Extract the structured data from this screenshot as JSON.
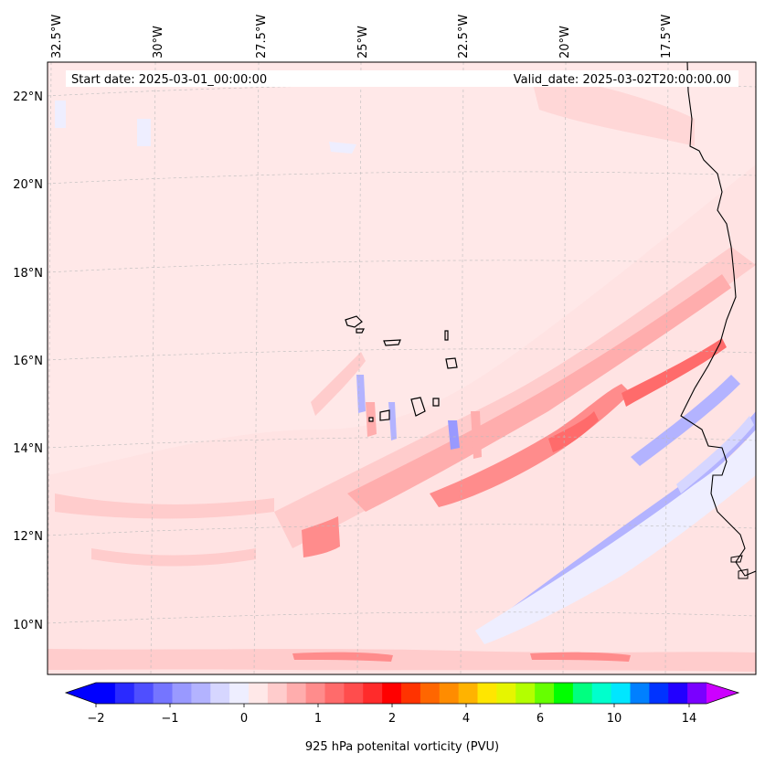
{
  "header": {
    "start_date": "Start date: 2025-03-01_00:00:00",
    "valid_date": "Valid_date: 2025-03-02T20:00:00.00"
  },
  "lon_labels": [
    "32.5°W",
    "30°W",
    "27.5°W",
    "25°W",
    "22.5°W",
    "20°W",
    "17.5°W"
  ],
  "lat_labels": [
    "22°N",
    "20°N",
    "18°N",
    "16°N",
    "14°N",
    "12°N",
    "10°N"
  ],
  "colorbar": {
    "title": "925 hPa potenital vorticity (PVU)",
    "tick_labels": [
      "−2",
      "−1",
      "0",
      "1",
      "2",
      "4",
      "6",
      "10",
      "14"
    ],
    "colors": [
      "#0000ff",
      "#2a2aff",
      "#4f4fff",
      "#7575ff",
      "#9999ff",
      "#b3b3ff",
      "#d6d6ff",
      "#eeeeff",
      "#ffe8e8",
      "#ffcccc",
      "#ffadad",
      "#ff8c8c",
      "#ff6b6b",
      "#ff4d4d",
      "#ff2b2b",
      "#ff0000",
      "#ff3300",
      "#ff6600",
      "#ff8c00",
      "#ffb300",
      "#ffe600",
      "#e6f500",
      "#b3ff00",
      "#66ff00",
      "#00ff00",
      "#00ff80",
      "#00ffcc",
      "#00e6ff",
      "#0080ff",
      "#0033ff",
      "#2200ff",
      "#7a00ff"
    ],
    "under_color": "#0000ff",
    "over_color": "#cc00ff"
  }
}
